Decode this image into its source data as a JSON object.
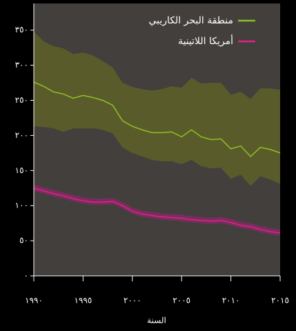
{
  "chart_data": {
    "type": "line",
    "x": [
      1990,
      1991,
      1992,
      1993,
      1994,
      1995,
      1996,
      1997,
      1998,
      1999,
      2000,
      2001,
      2002,
      2003,
      2004,
      2005,
      2006,
      2007,
      2008,
      2009,
      2010,
      2011,
      2012,
      2013,
      2014,
      2015
    ],
    "series": [
      {
        "name": "منطقة البحر الكاريبي",
        "color": "#8fc31f",
        "band_color": "#5a5b2b",
        "values": [
          276,
          270,
          262,
          259,
          253,
          257,
          254,
          250,
          243,
          221,
          213,
          208,
          204,
          204,
          205,
          198,
          208,
          198,
          194,
          195,
          181,
          185,
          170,
          183,
          180,
          175
        ],
        "upper": [
          348,
          334,
          327,
          324,
          316,
          318,
          314,
          306,
          297,
          275,
          269,
          266,
          264,
          266,
          270,
          268,
          282,
          274,
          275,
          275,
          258,
          262,
          252,
          267,
          267,
          265
        ],
        "lower": [
          213,
          212,
          210,
          205,
          210,
          210,
          210,
          208,
          203,
          183,
          175,
          170,
          165,
          163,
          163,
          159,
          165,
          156,
          153,
          154,
          138,
          144,
          128,
          142,
          137,
          131
        ]
      },
      {
        "name": "أمريكا اللاتينية",
        "color": "#e0218a",
        "band_color": "#7a2d5c",
        "values": [
          125,
          121,
          117,
          114,
          110,
          107,
          105,
          105,
          106,
          100,
          92,
          88,
          86,
          84,
          83,
          82,
          80,
          79,
          78,
          79,
          76,
          72,
          70,
          66,
          63,
          61
        ],
        "upper": [
          130,
          126,
          122,
          119,
          115,
          112,
          110,
          110,
          111,
          105,
          97,
          93,
          91,
          89,
          88,
          87,
          85,
          84,
          83,
          84,
          81,
          77,
          75,
          71,
          68,
          66
        ],
        "lower": [
          121,
          117,
          113,
          110,
          106,
          103,
          101,
          101,
          102,
          96,
          88,
          84,
          82,
          80,
          79,
          78,
          76,
          75,
          74,
          75,
          72,
          68,
          66,
          62,
          59,
          57
        ]
      }
    ],
    "xlabel": "السنة",
    "xlim": [
      1990,
      2015
    ],
    "xticks": [
      {
        "value": 1990,
        "label": "١٩٩٠"
      },
      {
        "value": 1995,
        "label": "١٩٩٥"
      },
      {
        "value": 2000,
        "label": "٢٠٠٠"
      },
      {
        "value": 2005,
        "label": "٢٠٠٥"
      },
      {
        "value": 2010,
        "label": "٢٠١٠"
      },
      {
        "value": 2015,
        "label": "٢٠١٥"
      }
    ],
    "ylim": [
      0,
      388
    ],
    "yticks": [
      {
        "value": 0,
        "label": "٠"
      },
      {
        "value": 50,
        "label": "٥٠"
      },
      {
        "value": 100,
        "label": "١٠٠"
      },
      {
        "value": 150,
        "label": "١٥٠"
      },
      {
        "value": 200,
        "label": "٢٠٠"
      },
      {
        "value": 250,
        "label": "٢٥٠"
      },
      {
        "value": 300,
        "label": "٣٠٠"
      },
      {
        "value": 350,
        "label": "٣٥٠"
      }
    ],
    "legend": "upper right"
  }
}
